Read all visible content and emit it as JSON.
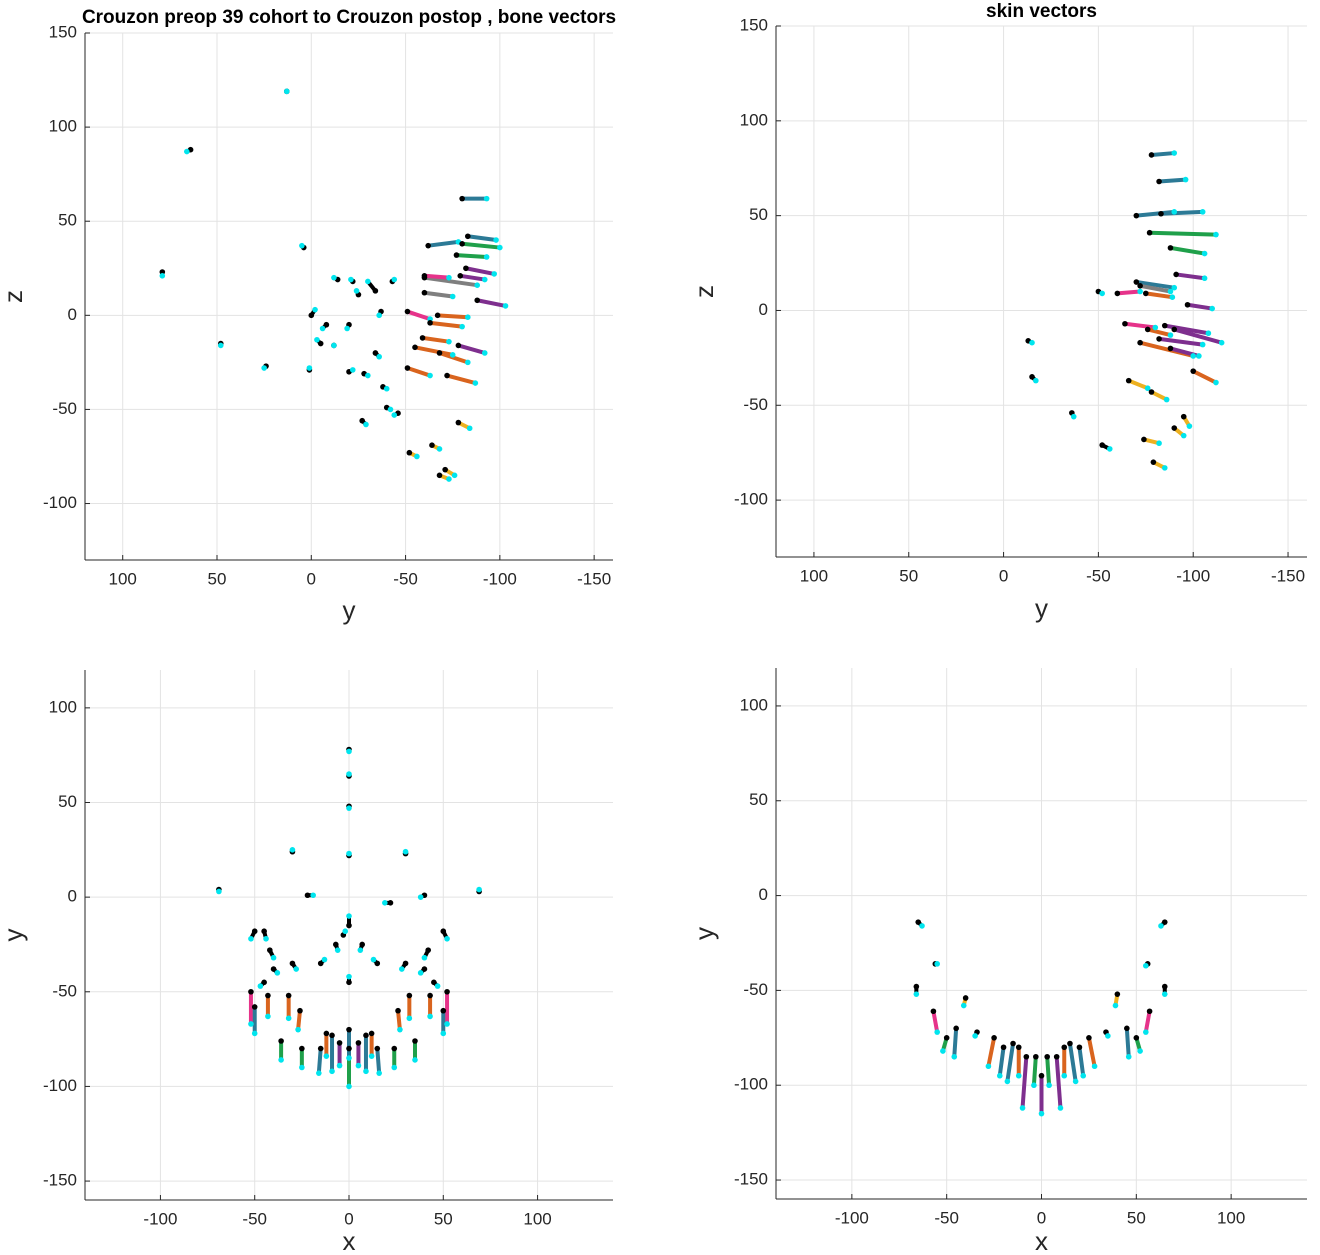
{
  "chart_data": [
    {
      "type": "vector",
      "title": "Crouzon preop 39 cohort to Crouzon postop , bone vectors",
      "xlabel": "y",
      "ylabel": "z",
      "xlim": [
        120,
        -160
      ],
      "ylim": [
        -130,
        150
      ],
      "xticks": [
        100,
        50,
        0,
        -50,
        -100,
        -150
      ],
      "yticks": [
        150,
        100,
        50,
        0,
        -50,
        -100
      ],
      "grid": true,
      "start_color": "#000000",
      "end_color": "#00e5ee",
      "x": [
        -80,
        -62,
        -83,
        -80,
        -77,
        -82,
        -79,
        -60,
        -60,
        -60,
        -88,
        -51,
        -67,
        -63,
        -59,
        -55,
        -78,
        -68,
        -51,
        -72,
        -78,
        -64,
        -52,
        -71,
        -68,
        13,
        64,
        79,
        48,
        24,
        4,
        0,
        -5,
        -8,
        -12,
        1,
        -20,
        -28,
        -34,
        -38,
        -40,
        -46,
        -27,
        -25,
        -34,
        -37,
        -20,
        -43,
        -14,
        -22
      ],
      "y": [
        62,
        37,
        42,
        38,
        32,
        25,
        21,
        20,
        21,
        12,
        8,
        2,
        0,
        -4,
        -12,
        -17,
        -16,
        -20,
        -28,
        -32,
        -57,
        -69,
        -73,
        -82,
        -85,
        119,
        88,
        23,
        -15,
        -27,
        36,
        0,
        -15,
        -5,
        -16,
        -29,
        -30,
        -31,
        -20,
        -38,
        -49,
        -52,
        -56,
        11,
        13,
        2,
        -5,
        18,
        19,
        18
      ],
      "x_end": [
        -93,
        -78,
        -98,
        -100,
        -93,
        -97,
        -92,
        -88,
        -73,
        -75,
        -103,
        -63,
        -83,
        -80,
        -73,
        -75,
        -92,
        -83,
        -63,
        -87,
        -84,
        -68,
        -56,
        -76,
        -73,
        13,
        66,
        79,
        48,
        25,
        5,
        -2,
        -3,
        -6,
        -12,
        1,
        -22,
        -30,
        -36,
        -40,
        -42,
        -44,
        -29,
        -24,
        -30,
        -36,
        -19,
        -44,
        -12,
        -21
      ],
      "y_end": [
        62,
        39,
        40,
        36,
        31,
        22,
        19,
        16,
        20,
        10,
        5,
        -2,
        -1,
        -6,
        -14,
        -21,
        -20,
        -25,
        -32,
        -36,
        -60,
        -71,
        -75,
        -85,
        -87,
        119,
        87,
        21,
        -16,
        -28,
        37,
        3,
        -13,
        -7,
        -16,
        -28,
        -29,
        -32,
        -22,
        -39,
        -50,
        -53,
        -58,
        13,
        18,
        0,
        -7,
        19,
        20,
        19
      ],
      "colors": [
        "#2c7a96",
        "#2c7a96",
        "#2c7a96",
        "#1fa04a",
        "#1fa04a",
        "#7e2f8e",
        "#7e2f8e",
        "#7f7f7f",
        "#e6338a",
        "#7f7f7f",
        "#7e2f8e",
        "#e6338a",
        "#d9641e",
        "#d9641e",
        "#d9641e",
        "#d9641e",
        "#7e2f8e",
        "#d9641e",
        "#d9641e",
        "#d9641e",
        "#edb120",
        "#edb120",
        "#edb120",
        "#edb120",
        "#edb120",
        "#000000",
        "#000000",
        "#000000",
        "#000000",
        "#000000",
        "#000000",
        "#000000",
        "#000000",
        "#000000",
        "#000000",
        "#000000",
        "#000000",
        "#000000",
        "#000000",
        "#000000",
        "#000000",
        "#000000",
        "#000000",
        "#000000",
        "#000000",
        "#000000",
        "#000000",
        "#000000",
        "#000000",
        "#000000"
      ]
    },
    {
      "type": "vector",
      "title": "skin vectors",
      "xlabel": "y",
      "ylabel": "z",
      "xlim": [
        120,
        -160
      ],
      "ylim": [
        -130,
        150
      ],
      "xticks": [
        100,
        50,
        0,
        -50,
        -100,
        -150
      ],
      "yticks": [
        150,
        100,
        50,
        0,
        -50,
        -100
      ],
      "grid": true,
      "start_color": "#000000",
      "end_color": "#00e5ee",
      "x": [
        -78,
        -82,
        -70,
        -83,
        -77,
        -88,
        -91,
        -70,
        -72,
        -50,
        -60,
        -75,
        -97,
        -64,
        -85,
        -90,
        -76,
        -72,
        -88,
        -82,
        -100,
        -66,
        -78,
        -95,
        -74,
        -90,
        -79,
        -13,
        -15,
        -36,
        -52
      ],
      "y": [
        82,
        68,
        50,
        51,
        41,
        33,
        19,
        15,
        13,
        10,
        9,
        9,
        3,
        -7,
        -8,
        -10,
        -10,
        -17,
        -20,
        -15,
        -32,
        -37,
        -43,
        -56,
        -68,
        -62,
        -80,
        -16,
        -35,
        -54,
        -71
      ],
      "x_end": [
        -90,
        -96,
        -90,
        -105,
        -112,
        -106,
        -106,
        -90,
        -88,
        -52,
        -72,
        -89,
        -110,
        -80,
        -108,
        -115,
        -88,
        -100,
        -103,
        -105,
        -112,
        -76,
        -86,
        -98,
        -82,
        -95,
        -85,
        -15,
        -17,
        -37,
        -56
      ],
      "y_end": [
        83,
        69,
        52,
        52,
        40,
        30,
        17,
        12,
        10,
        9,
        10,
        7,
        1,
        -9,
        -12,
        -17,
        -13,
        -24,
        -24,
        -18,
        -38,
        -41,
        -47,
        -61,
        -70,
        -66,
        -83,
        -17,
        -37,
        -56,
        -73
      ],
      "colors": [
        "#2c7a96",
        "#2c7a96",
        "#2c7a96",
        "#2c7a96",
        "#1fa04a",
        "#1fa04a",
        "#7e2f8e",
        "#2c7a96",
        "#7f7f7f",
        "#e6338a",
        "#e6338a",
        "#d9641e",
        "#7e2f8e",
        "#e6338a",
        "#7e2f8e",
        "#7e2f8e",
        "#d9641e",
        "#d9641e",
        "#7e2f8e",
        "#7e2f8e",
        "#d9641e",
        "#edb120",
        "#edb120",
        "#edb120",
        "#edb120",
        "#edb120",
        "#edb120",
        "#000000",
        "#000000",
        "#000000",
        "#000000"
      ]
    },
    {
      "type": "vector",
      "xlabel": "x",
      "ylabel": "y",
      "xlim": [
        -140,
        140
      ],
      "ylim": [
        -160,
        120
      ],
      "xticks": [
        -100,
        -50,
        0,
        50,
        100
      ],
      "yticks": [
        100,
        50,
        0,
        -50,
        -100,
        -150
      ],
      "grid": true,
      "start_color": "#000000",
      "end_color": "#00e5ee",
      "x": [
        -52,
        52,
        -50,
        50,
        -43,
        43,
        -32,
        32,
        -26,
        26,
        -36,
        35,
        -25,
        24,
        -15,
        15,
        -9,
        9,
        -12,
        12,
        -5,
        5,
        0,
        0,
        0,
        0,
        0,
        0,
        -30,
        30,
        -69,
        69,
        -22,
        -45,
        -42,
        42,
        -40,
        40,
        -45,
        45,
        0,
        0,
        -15,
        15,
        -7,
        7,
        -30,
        30,
        -3,
        -50,
        50,
        22,
        40
      ],
      "y": [
        -50,
        -50,
        -58,
        -60,
        -52,
        -52,
        -52,
        -52,
        -60,
        -60,
        -76,
        -76,
        -80,
        -80,
        -80,
        -80,
        -73,
        -73,
        -72,
        -72,
        -77,
        -77,
        -80,
        -70,
        78,
        64,
        48,
        22,
        24,
        23,
        4,
        3,
        1,
        -18,
        -28,
        -28,
        -38,
        -38,
        -45,
        -45,
        -15,
        -45,
        -35,
        -35,
        -25,
        -25,
        -35,
        -35,
        -20,
        -18,
        -18,
        -3,
        1
      ],
      "x_end": [
        -52,
        52,
        -50,
        50,
        -43,
        43,
        -32,
        32,
        -27,
        27,
        -36,
        35,
        -25,
        24,
        -16,
        16,
        -9,
        9,
        -12,
        12,
        -5,
        5,
        0,
        0,
        0,
        0,
        0,
        0,
        -30,
        30,
        -69,
        69,
        -19,
        -44,
        -40,
        40,
        -38,
        38,
        -47,
        47,
        0,
        0,
        -13,
        13,
        -6,
        6,
        -28,
        28,
        -2,
        -52,
        52,
        19,
        38
      ],
      "y_end": [
        -67,
        -67,
        -72,
        -72,
        -63,
        -63,
        -64,
        -64,
        -70,
        -70,
        -86,
        -86,
        -90,
        -90,
        -93,
        -93,
        -92,
        -92,
        -84,
        -84,
        -89,
        -89,
        -100,
        -85,
        77,
        65,
        47,
        23,
        25,
        24,
        3,
        4,
        1,
        -22,
        -32,
        -32,
        -40,
        -40,
        -47,
        -47,
        -10,
        -42,
        -33,
        -33,
        -28,
        -28,
        -38,
        -38,
        -18,
        -22,
        -22,
        -3,
        0
      ],
      "colors": [
        "#e6338a",
        "#e6338a",
        "#2c7a96",
        "#2c7a96",
        "#d9641e",
        "#d9641e",
        "#d9641e",
        "#d9641e",
        "#d9641e",
        "#d9641e",
        "#1fa04a",
        "#1fa04a",
        "#1fa04a",
        "#1fa04a",
        "#2c7a96",
        "#2c7a96",
        "#2c7a96",
        "#2c7a96",
        "#d9641e",
        "#d9641e",
        "#7e2f8e",
        "#7e2f8e",
        "#1fa04a",
        "#2c7a96",
        "#000000",
        "#000000",
        "#000000",
        "#000000",
        "#000000",
        "#000000",
        "#000000",
        "#000000",
        "#000000",
        "#000000",
        "#000000",
        "#000000",
        "#000000",
        "#000000",
        "#000000",
        "#000000",
        "#000000",
        "#000000",
        "#000000",
        "#000000",
        "#000000",
        "#000000",
        "#000000",
        "#000000",
        "#000000",
        "#000000",
        "#000000",
        "#000000",
        "#000000"
      ]
    },
    {
      "type": "vector",
      "xlabel": "x",
      "ylabel": "y",
      "xlim": [
        -140,
        140
      ],
      "ylim": [
        -160,
        120
      ],
      "xticks": [
        -100,
        -50,
        0,
        50,
        100
      ],
      "yticks": [
        100,
        50,
        0,
        -50,
        -100,
        -150
      ],
      "grid": true,
      "start_color": "#000000",
      "end_color": "#00e5ee",
      "x": [
        -65,
        65,
        -56,
        56,
        -66,
        65,
        -57,
        57,
        -40,
        40,
        -45,
        45,
        -50,
        50,
        -25,
        25,
        -15,
        15,
        -8,
        8,
        -12,
        12,
        -3,
        3,
        0,
        -20,
        20,
        -34,
        34
      ],
      "y": [
        -14,
        -14,
        -36,
        -36,
        -48,
        -48,
        -61,
        -61,
        -54,
        -52,
        -70,
        -70,
        -75,
        -75,
        -75,
        -75,
        -78,
        -78,
        -85,
        -85,
        -80,
        -80,
        -85,
        -85,
        -95,
        -80,
        -80,
        -72,
        -72
      ],
      "x_end": [
        -63,
        63,
        -55,
        55,
        -66,
        65,
        -55,
        55,
        -41,
        39,
        -46,
        46,
        -52,
        52,
        -28,
        28,
        -18,
        18,
        -10,
        10,
        -12,
        12,
        -4,
        4,
        0,
        -22,
        22,
        -35,
        35
      ],
      "y_end": [
        -16,
        -16,
        -36,
        -37,
        -52,
        -52,
        -72,
        -72,
        -58,
        -58,
        -85,
        -85,
        -82,
        -82,
        -90,
        -90,
        -98,
        -98,
        -112,
        -112,
        -95,
        -95,
        -100,
        -100,
        -115,
        -95,
        -95,
        -74,
        -74
      ],
      "colors": [
        "#000000",
        "#000000",
        "#000000",
        "#000000",
        "#000000",
        "#000000",
        "#e6338a",
        "#e6338a",
        "#edb120",
        "#edb120",
        "#2c7a96",
        "#2c7a96",
        "#1fa04a",
        "#1fa04a",
        "#d9641e",
        "#d9641e",
        "#2c7a96",
        "#2c7a96",
        "#7e2f8e",
        "#7e2f8e",
        "#d9641e",
        "#d9641e",
        "#1fa04a",
        "#1fa04a",
        "#7e2f8e",
        "#2c7a96",
        "#2c7a96",
        "#000000",
        "#000000"
      ]
    }
  ]
}
